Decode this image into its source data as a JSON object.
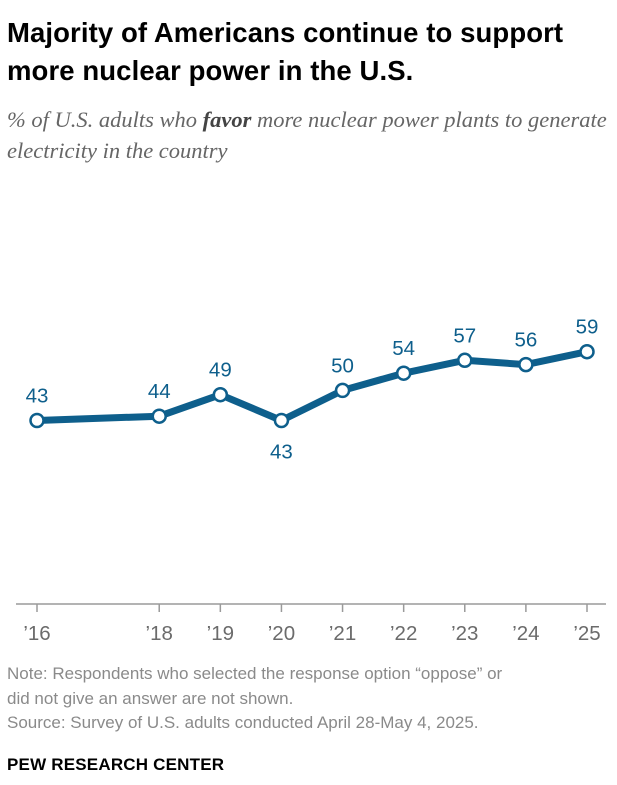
{
  "title": "Majority of Americans continue to support more nuclear power in the U.S.",
  "subtitle": {
    "before": "% of U.S. adults who ",
    "emphasis": "favor",
    "after": " more nuclear power plants to generate electricity in the country"
  },
  "chart_data": {
    "type": "line",
    "x": [
      "’16",
      "’18",
      "’19",
      "’20",
      "’21",
      "’22",
      "’23",
      "’24",
      "’25"
    ],
    "x_years": [
      2016,
      2018,
      2019,
      2020,
      2021,
      2022,
      2023,
      2024,
      2025
    ],
    "series": [
      {
        "values": [
          43,
          44,
          49,
          43,
          50,
          54,
          57,
          56,
          59
        ],
        "color": "#0e5f8c"
      }
    ],
    "label_below": [
      false,
      false,
      false,
      true,
      false,
      false,
      false,
      false,
      false
    ],
    "grid": false
  },
  "note_lines": [
    "Note: Respondents who selected the response option “oppose” or",
    "did not give an answer are not shown.",
    "Source: Survey of U.S. adults conducted April 28-May 4, 2025."
  ],
  "brand": "PEW RESEARCH CENTER"
}
